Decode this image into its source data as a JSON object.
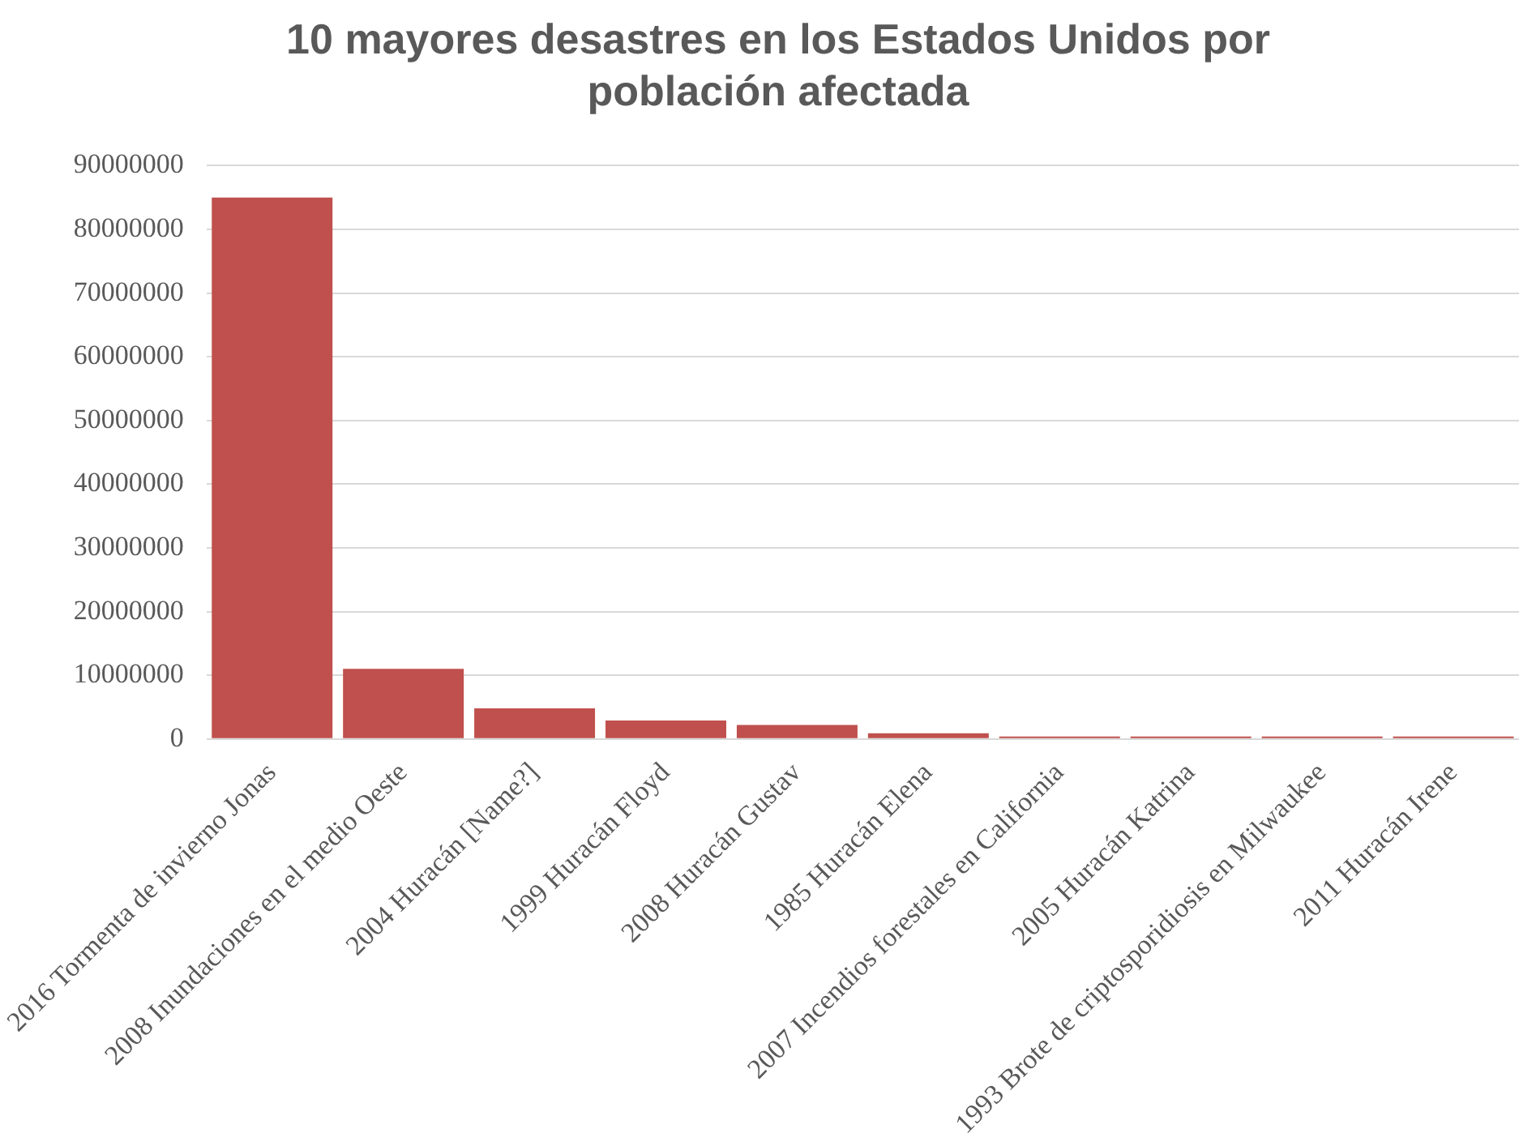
{
  "chart_data": {
    "type": "bar",
    "title": "10 mayores desastres en los Estados Unidos por población afectada",
    "categories": [
      "2016 Tormenta de invierno Jonas",
      "2008 Inundaciones en el medio Oeste",
      "2004 Huracán [Name?]",
      "1999 Huracán Floyd",
      "2008 Huracán Gustav",
      "1985 Huracán Elena",
      "2007 Incendios forestales en California",
      "2005 Huracán Katrina",
      "1993 Brote de criptosporidiosis en Milwaukee",
      "2011 Huracán Irene"
    ],
    "values": [
      85000000,
      11000000,
      4800000,
      2900000,
      2200000,
      900000,
      400000,
      400000,
      400000,
      400000
    ],
    "color": "#c0504d",
    "ylim": [
      0,
      90000000
    ],
    "yticks": [
      0,
      10000000,
      20000000,
      30000000,
      40000000,
      50000000,
      60000000,
      70000000,
      80000000,
      90000000
    ],
    "grid": "y"
  }
}
